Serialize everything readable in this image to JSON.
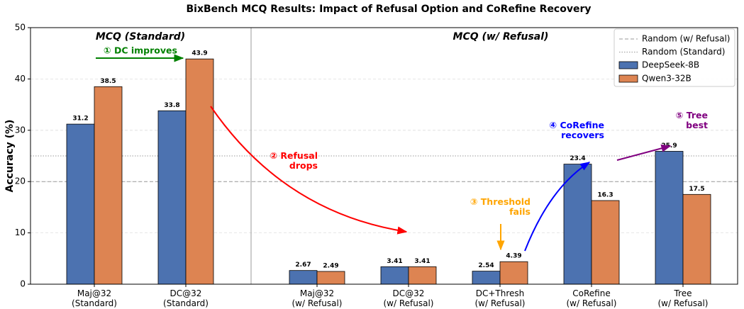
{
  "chart_data": {
    "type": "bar",
    "title": "BixBench MCQ Results: Impact of Refusal Option and CoRefine Recovery",
    "y_label": "Accuracy (%)",
    "categories": [
      "Maj@32\n(Standard)",
      "DC@32\n(Standard)",
      "Maj@32\n(w/ Refusal)",
      "DC@32\n(w/ Refusal)",
      "DC+Thresh\n(w/ Refusal)",
      "CoRefine\n(w/ Refusal)",
      "Tree\n(w/ Refusal)"
    ],
    "series": [
      {
        "name": "DeepSeek-8B",
        "color": "#4c72b0",
        "values": [
          31.2,
          33.8,
          2.67,
          3.41,
          2.54,
          23.4,
          25.9
        ]
      },
      {
        "name": "Qwen3-32B",
        "color": "#dd8452",
        "values": [
          38.5,
          43.9,
          2.49,
          3.41,
          4.39,
          16.3,
          17.5
        ]
      }
    ],
    "ylim": [
      0,
      50
    ],
    "yticks": [
      0,
      10,
      20,
      30,
      40,
      50
    ],
    "grid": true,
    "reference_lines": [
      {
        "name": "Random (w/ Refusal)",
        "value": 20,
        "style": "dashed"
      },
      {
        "name": "Random (Standard)",
        "value": 25,
        "style": "dotted"
      }
    ],
    "section_labels": [
      "MCQ (Standard)",
      "MCQ (w/ Refusal)"
    ],
    "annotations": [
      {
        "text": "① DC improves",
        "color": "#008000"
      },
      {
        "text": "② Refusal\ndrops",
        "color": "#ff0000"
      },
      {
        "text": "③ Threshold\nfails",
        "color": "#ffa500"
      },
      {
        "text": "④ CoRefine\nrecovers",
        "color": "#0000ff"
      },
      {
        "text": "⑤ Tree\nbest",
        "color": "#800080"
      }
    ],
    "legend": "upper right"
  }
}
